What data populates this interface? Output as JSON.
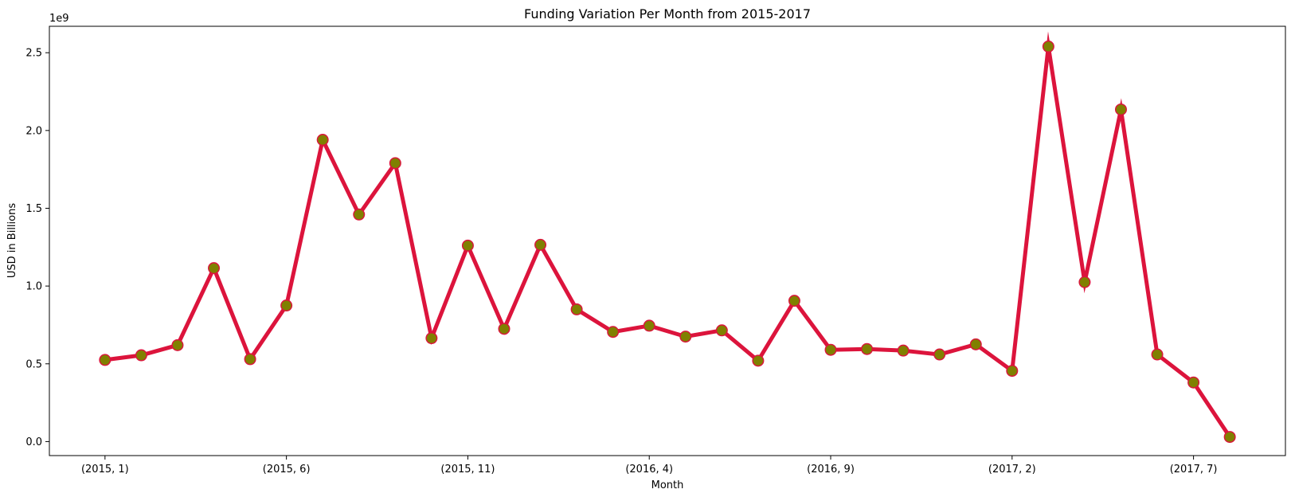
{
  "chart_data": {
    "type": "line",
    "title": "Funding Variation Per Month from 2015-2017",
    "xlabel": "Month",
    "ylabel": "USD in Billions",
    "y_offset_label": "1e9",
    "categories": [
      "(2015, 1)",
      "(2015, 2)",
      "(2015, 3)",
      "(2015, 4)",
      "(2015, 5)",
      "(2015, 6)",
      "(2015, 7)",
      "(2015, 8)",
      "(2015, 9)",
      "(2015, 10)",
      "(2015, 11)",
      "(2015, 12)",
      "(2016, 1)",
      "(2016, 2)",
      "(2016, 3)",
      "(2016, 4)",
      "(2016, 5)",
      "(2016, 6)",
      "(2016, 7)",
      "(2016, 8)",
      "(2016, 9)",
      "(2016, 10)",
      "(2016, 11)",
      "(2016, 12)",
      "(2017, 1)",
      "(2017, 2)",
      "(2017, 3)",
      "(2017, 4)",
      "(2017, 5)",
      "(2017, 6)",
      "(2017, 7)",
      "(2017, 8)"
    ],
    "x_tick_labels": [
      "(2015, 1)",
      "(2015, 6)",
      "(2015, 11)",
      "(2016, 4)",
      "(2016, 9)",
      "(2017, 2)",
      "(2017, 7)"
    ],
    "y_ticks": [
      0.0,
      0.5,
      1.0,
      1.5,
      2.0,
      2.5
    ],
    "ylim": [
      -0.09,
      2.67
    ],
    "series": [
      {
        "values": [
          0.525,
          0.555,
          0.62,
          1.115,
          0.53,
          0.875,
          1.94,
          1.46,
          1.79,
          0.665,
          1.26,
          0.725,
          1.265,
          0.85,
          0.705,
          0.745,
          0.675,
          0.715,
          0.52,
          0.905,
          0.59,
          0.595,
          0.585,
          0.56,
          0.625,
          0.455,
          2.54,
          1.025,
          2.135,
          0.56,
          0.38,
          0.03
        ],
        "line_color": "#dc143c",
        "marker_face_color": "#808000",
        "marker_edge_color": "#dc143c"
      }
    ],
    "grid": false,
    "legend": false
  }
}
